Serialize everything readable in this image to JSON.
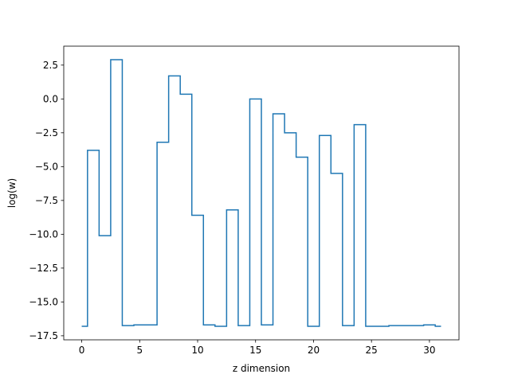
{
  "chart_data": {
    "type": "line",
    "drawstyle": "steps-mid",
    "title": "",
    "xlabel": "z dimension",
    "ylabel": "log(w)",
    "xlim": [
      -1.55,
      32.55
    ],
    "ylim": [
      -17.8,
      3.9
    ],
    "xticks": [
      0,
      5,
      10,
      15,
      20,
      25,
      30
    ],
    "xtick_labels": [
      "0",
      "5",
      "10",
      "15",
      "20",
      "25",
      "30"
    ],
    "yticks": [
      2.5,
      0.0,
      -2.5,
      -5.0,
      -7.5,
      -10.0,
      -12.5,
      -15.0,
      -17.5
    ],
    "ytick_labels": [
      "2.5",
      "0.0",
      "−2.5",
      "−5.0",
      "−7.5",
      "−10.0",
      "−12.5",
      "−15.0",
      "−17.5"
    ],
    "grid": false,
    "line_color": "#1f77b4",
    "series": [
      {
        "x": [
          0,
          1,
          2,
          3,
          4,
          5,
          6,
          7,
          8,
          9,
          10,
          11,
          12,
          13,
          14,
          15,
          16,
          17,
          18,
          19,
          20,
          21,
          22,
          23,
          24,
          25,
          26,
          27,
          28,
          29,
          30,
          31
        ],
        "y": [
          -16.8,
          -3.8,
          -10.1,
          2.9,
          -16.75,
          -16.7,
          -16.7,
          -3.2,
          1.7,
          0.35,
          -8.6,
          -16.7,
          -16.8,
          -8.2,
          -16.75,
          0.0,
          -16.7,
          -1.1,
          -2.5,
          -4.3,
          -16.8,
          -2.7,
          -5.5,
          -16.75,
          -1.9,
          -16.8,
          -16.8,
          -16.75,
          -16.75,
          -16.75,
          -16.7,
          -16.8
        ]
      }
    ]
  }
}
